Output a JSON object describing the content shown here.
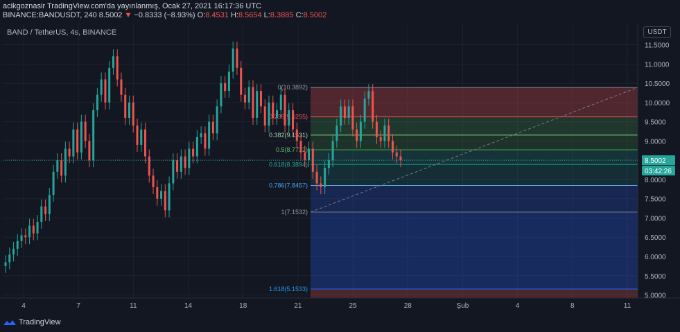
{
  "header": {
    "line1": "acikgoznasir TradingView.com'da yayınlanmış, Ocak 27, 2021 16:17:36 UTC",
    "symbol": "BINANCE:BANDUSDT, 240",
    "last": "8.5002",
    "change": "−0.8333 (−8.93%)",
    "o_label": "O:",
    "o": "8.4531",
    "h_label": "H:",
    "h": "8.5654",
    "l_label": "L:",
    "l": "8.3885",
    "c_label": "C:",
    "c": "8.5002"
  },
  "chart_title": "BAND / TetherUS, 4s, BINANCE",
  "currency_button": "USDT",
  "price_badge": "8.5002",
  "countdown_badge": "03:42:26",
  "footer_brand": "TradingView",
  "colors": {
    "background": "#131722",
    "up": "#26a69a",
    "down": "#ef5350",
    "grid": "#1e222d",
    "axis_text": "#b2b5be"
  },
  "chart_data": {
    "type": "candlestick",
    "title": "BAND / TetherUS, 4s, BINANCE",
    "y_axis": {
      "ticks": [
        "11.5000",
        "11.0000",
        "10.5000",
        "10.0000",
        "9.5000",
        "9.0000",
        "8.5000",
        "8.0000",
        "7.5000",
        "7.0000",
        "6.5000",
        "6.0000",
        "5.5000",
        "5.0000"
      ],
      "range": [
        4.92,
        12.05
      ]
    },
    "x_axis": {
      "ticks": [
        "4",
        "7",
        "11",
        "14",
        "18",
        "21",
        "25",
        "28",
        "Şub",
        "4",
        "8",
        "11"
      ]
    },
    "close_series": [
      [
        1,
        5.85
      ],
      [
        2,
        6.05
      ],
      [
        3,
        6.2
      ],
      [
        4,
        6.4
      ],
      [
        5,
        6.55
      ],
      [
        6,
        6.5
      ],
      [
        7,
        6.8
      ],
      [
        8,
        6.6
      ],
      [
        9,
        6.9
      ],
      [
        10,
        7.3
      ],
      [
        11,
        7.1
      ],
      [
        12,
        7.6
      ],
      [
        13,
        8.2
      ],
      [
        14,
        8.5
      ],
      [
        15,
        8.1
      ],
      [
        16,
        8.8
      ],
      [
        17,
        8.6
      ],
      [
        18,
        9.3
      ],
      [
        19,
        8.7
      ],
      [
        20,
        9.5
      ],
      [
        21,
        9.0
      ],
      [
        22,
        8.5
      ],
      [
        23,
        9.8
      ],
      [
        24,
        10.2
      ],
      [
        25,
        10.6
      ],
      [
        26,
        10.0
      ],
      [
        27,
        10.9
      ],
      [
        28,
        11.2
      ],
      [
        29,
        10.6
      ],
      [
        30,
        10.2
      ],
      [
        31,
        9.6
      ],
      [
        32,
        10.0
      ],
      [
        33,
        9.4
      ],
      [
        34,
        8.9
      ],
      [
        35,
        9.3
      ],
      [
        36,
        8.6
      ],
      [
        37,
        8.1
      ],
      [
        38,
        7.8
      ],
      [
        39,
        7.5
      ],
      [
        40,
        7.7
      ],
      [
        41,
        7.2
      ],
      [
        42,
        7.9
      ],
      [
        43,
        8.5
      ],
      [
        44,
        8.2
      ],
      [
        45,
        8.6
      ],
      [
        46,
        8.3
      ],
      [
        47,
        8.8
      ],
      [
        48,
        8.6
      ],
      [
        49,
        9.1
      ],
      [
        50,
        9.2
      ],
      [
        51,
        8.8
      ],
      [
        52,
        9.5
      ],
      [
        53,
        9.2
      ],
      [
        54,
        9.9
      ],
      [
        55,
        10.5
      ],
      [
        56,
        10.3
      ],
      [
        57,
        10.8
      ],
      [
        58,
        11.4
      ],
      [
        59,
        10.9
      ],
      [
        60,
        10.2
      ],
      [
        61,
        10.0
      ],
      [
        62,
        10.4
      ],
      [
        63,
        9.6
      ],
      [
        64,
        10.3
      ],
      [
        65,
        9.9
      ],
      [
        66,
        9.4
      ],
      [
        67,
        10.0
      ],
      [
        68,
        9.6
      ],
      [
        69,
        9.8
      ],
      [
        70,
        10.2
      ],
      [
        71,
        9.4
      ],
      [
        72,
        9.8
      ],
      [
        73,
        9.3
      ],
      [
        74,
        9.0
      ],
      [
        75,
        8.7
      ],
      [
        76,
        8.5
      ],
      [
        77,
        8.8
      ],
      [
        78,
        8.2
      ],
      [
        79,
        7.9
      ],
      [
        80,
        7.8
      ],
      [
        81,
        8.3
      ],
      [
        82,
        8.5
      ],
      [
        83,
        9.0
      ],
      [
        84,
        9.4
      ],
      [
        85,
        9.9
      ],
      [
        86,
        9.6
      ],
      [
        87,
        9.9
      ],
      [
        88,
        9.3
      ],
      [
        89,
        9.0
      ],
      [
        90,
        9.5
      ],
      [
        91,
        10.1
      ],
      [
        92,
        10.3
      ],
      [
        93,
        9.5
      ],
      [
        94,
        9.1
      ],
      [
        95,
        9.0
      ],
      [
        96,
        9.4
      ],
      [
        97,
        9.0
      ],
      [
        98,
        8.7
      ],
      [
        99,
        8.6
      ],
      [
        100,
        8.5
      ]
    ],
    "fibonacci": [
      {
        "level": "0",
        "price": 10.3892,
        "label": "0(10.3892)"
      },
      {
        "level": "0.236",
        "price": 9.6255,
        "label": "0.236(9.6255)"
      },
      {
        "level": "0.382",
        "price": 9.1531,
        "label": "0.382(9.1531)"
      },
      {
        "level": "0.5",
        "price": 8.7712,
        "label": "0.5(8.7712)"
      },
      {
        "level": "0.618",
        "price": 8.3894,
        "label": "0.618(8.3894)"
      },
      {
        "level": "0.786",
        "price": 7.8457,
        "label": "0.786(7.8457)"
      },
      {
        "level": "1",
        "price": 7.1532,
        "label": "1(7.1532)"
      },
      {
        "level": "1.618",
        "price": 5.1533,
        "label": "1.618(5.1533)"
      }
    ]
  }
}
